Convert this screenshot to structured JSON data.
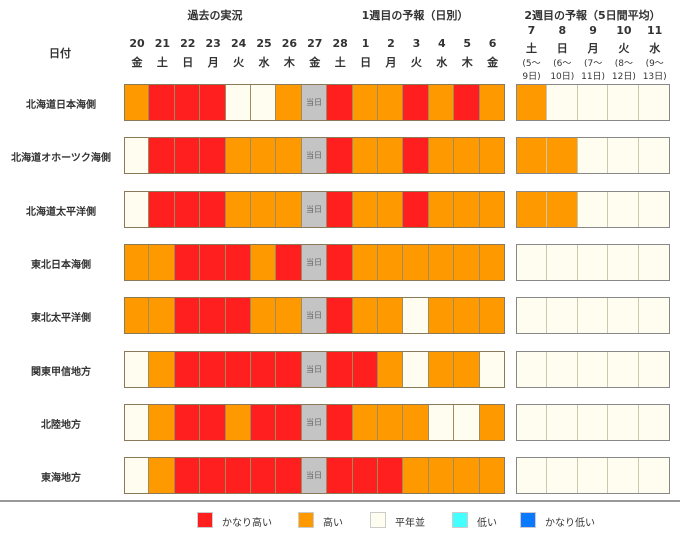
{
  "header": {
    "date_label": "日付",
    "section_past": "過去の実況",
    "section_week1": "1週目の予報（日別）",
    "section_week2": "2週目の予報（5日間平均）",
    "today_label": "当日"
  },
  "week1_days": [
    {
      "d": "20",
      "w": "金"
    },
    {
      "d": "21",
      "w": "土"
    },
    {
      "d": "22",
      "w": "日"
    },
    {
      "d": "23",
      "w": "月"
    },
    {
      "d": "24",
      "w": "火"
    },
    {
      "d": "25",
      "w": "水"
    },
    {
      "d": "26",
      "w": "木"
    },
    {
      "d": "27",
      "w": "金"
    },
    {
      "d": "28",
      "w": "土"
    },
    {
      "d": "1",
      "w": "日"
    },
    {
      "d": "2",
      "w": "月"
    },
    {
      "d": "3",
      "w": "火"
    },
    {
      "d": "4",
      "w": "水"
    },
    {
      "d": "5",
      "w": "木"
    },
    {
      "d": "6",
      "w": "金"
    }
  ],
  "week2_days": [
    {
      "d": "7",
      "w": "土",
      "r1": "(5〜",
      "r2": "9日)"
    },
    {
      "d": "8",
      "w": "日",
      "r1": "(6〜",
      "r2": "10日)"
    },
    {
      "d": "9",
      "w": "月",
      "r1": "(7〜",
      "r2": "11日)"
    },
    {
      "d": "10",
      "w": "火",
      "r1": "(8〜",
      "r2": "12日)"
    },
    {
      "d": "11",
      "w": "水",
      "r1": "(9〜",
      "r2": "13日)"
    }
  ],
  "chart_data": {
    "type": "heatmap",
    "category_codes": {
      "R": "かなり高い",
      "O": "高い",
      "N": "平年並",
      "T": "当日"
    },
    "rows": [
      {
        "region": "北海道日本海側",
        "daily": "ORRRNNOTROORORO",
        "weekly": "ONNNN"
      },
      {
        "region": "北海道オホーツク海側",
        "daily": "NRRROOOTROOROOO",
        "weekly": "OONNN"
      },
      {
        "region": "北海道太平洋側",
        "daily": "NRRROOOTROOROOO",
        "weekly": "OONNN"
      },
      {
        "region": "東北日本海側",
        "daily": "OORRRORTROOOOOO",
        "weekly": "NNNNN"
      },
      {
        "region": "東北太平洋側",
        "daily": "OORRROOTROONOOO",
        "weekly": "NNNNN"
      },
      {
        "region": "関東甲信地方",
        "daily": "NORRRRRTRRONOON",
        "weekly": "NNNNN"
      },
      {
        "region": "北陸地方",
        "daily": "NORRORRTROOONNO",
        "weekly": "NNNNN"
      },
      {
        "region": "東海地方",
        "daily": "NORRRRRTRRROOOO",
        "weekly": "NNNNN"
      }
    ]
  },
  "legend": [
    {
      "label": "かなり高い",
      "color": "#ff1f1f"
    },
    {
      "label": "高い",
      "color": "#ff9900"
    },
    {
      "label": "平年並",
      "color": "#fffdf0"
    },
    {
      "label": "低い",
      "color": "#44ffff"
    },
    {
      "label": "かなり低い",
      "color": "#0a78ff"
    }
  ],
  "colors": {
    "R": "#ff1f1f",
    "O": "#ff9900",
    "N": "#fffdf0",
    "T": "#c4c4c4"
  }
}
